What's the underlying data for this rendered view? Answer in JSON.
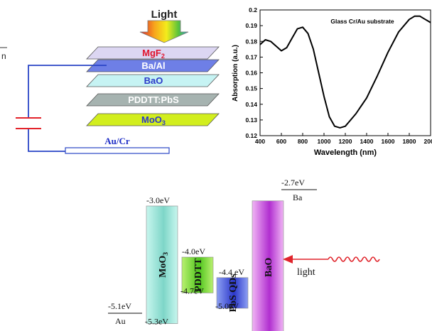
{
  "device": {
    "light_label": "Light",
    "side_label": "n",
    "layers": [
      {
        "id": "mgf2",
        "label": "MgF",
        "sub": "2",
        "fill": "#dcd6f2",
        "text_color": "#e0142d"
      },
      {
        "id": "ba_al",
        "label": "Ba/Al",
        "sub": "",
        "fill": "#6e7fe6",
        "text_color": "#ffffff"
      },
      {
        "id": "bao",
        "label": "BaO",
        "sub": "",
        "fill": "#c6f3f3",
        "text_color": "#2b39c9"
      },
      {
        "id": "pddtt_pbs",
        "label": "PDDTT:PbS",
        "sub": "",
        "fill": "#a6b3b0",
        "text_color": "#ffffff"
      },
      {
        "id": "moo3",
        "label": "MoO",
        "sub": "3",
        "fill": "#d2ee1e",
        "text_color": "#2b39c9"
      }
    ],
    "electrode": {
      "label": "Au/Cr",
      "text_color": "#1d2cc6"
    },
    "wire_color": "#2a46c6",
    "battery_color": "#e3242b"
  },
  "chart_data": {
    "type": "line",
    "title": "Glass Cr/Au substrate",
    "xlabel": "Wavelength (nm)",
    "ylabel": "Absorption (a.u.)",
    "xlim": [
      400,
      2000
    ],
    "ylim": [
      0.12,
      0.2
    ],
    "xticks": [
      400,
      600,
      800,
      1000,
      1200,
      1400,
      1600,
      1800,
      2000
    ],
    "yticks": [
      0.12,
      0.13,
      0.14,
      0.15,
      0.16,
      0.17,
      0.18,
      0.19,
      0.2
    ],
    "series": [
      {
        "x": [
          350,
          400,
          450,
          500,
          550,
          600,
          650,
          700,
          750,
          800,
          850,
          900,
          950,
          1000,
          1050,
          1100,
          1150,
          1200,
          1250,
          1300,
          1400,
          1500,
          1600,
          1700,
          1800,
          1850,
          1900,
          1950,
          2000
        ],
        "y": [
          0.172,
          0.178,
          0.181,
          0.18,
          0.177,
          0.174,
          0.176,
          0.182,
          0.188,
          0.189,
          0.185,
          0.175,
          0.16,
          0.145,
          0.132,
          0.126,
          0.125,
          0.126,
          0.13,
          0.134,
          0.144,
          0.158,
          0.173,
          0.186,
          0.194,
          0.196,
          0.196,
          0.194,
          0.192
        ]
      }
    ]
  },
  "energy": {
    "blocks": [
      {
        "id": "moo3",
        "label": "MoO",
        "sub": "3",
        "top_label": "-3.0eV",
        "bottom_label": "-5.3eV",
        "top_ev": -3.0,
        "bottom_ev": -5.3,
        "color_a": "#c8f6ee",
        "color_b": "#7ed6c8"
      },
      {
        "id": "pddtt",
        "label": "PDDTT",
        "sub": "",
        "top_label": "-4.0eV",
        "bottom_label": "-4.7eV",
        "top_ev": -4.0,
        "bottom_ev": -4.7,
        "color_a": "#b9f070",
        "color_b": "#4fc51d"
      },
      {
        "id": "pbs",
        "label": "PbS QDs",
        "sub": "",
        "top_label": "-4.4 eV",
        "bottom_label": "-5.0eV",
        "top_ev": -4.4,
        "bottom_ev": -5.0,
        "color_a": "#8da0f3",
        "color_b": "#2a36c9"
      },
      {
        "id": "bao",
        "label": "BaO",
        "sub": "",
        "top_label": "",
        "bottom_label": "",
        "top_ev": -2.9,
        "bottom_ev": -5.5,
        "color_a": "#f0b4f4",
        "color_b": "#b12fd0"
      }
    ],
    "left_level": {
      "value": "-5.1eV",
      "name": "Au"
    },
    "right_level": {
      "value": "-2.7eV",
      "name": "Ba"
    },
    "light_label": "light"
  }
}
